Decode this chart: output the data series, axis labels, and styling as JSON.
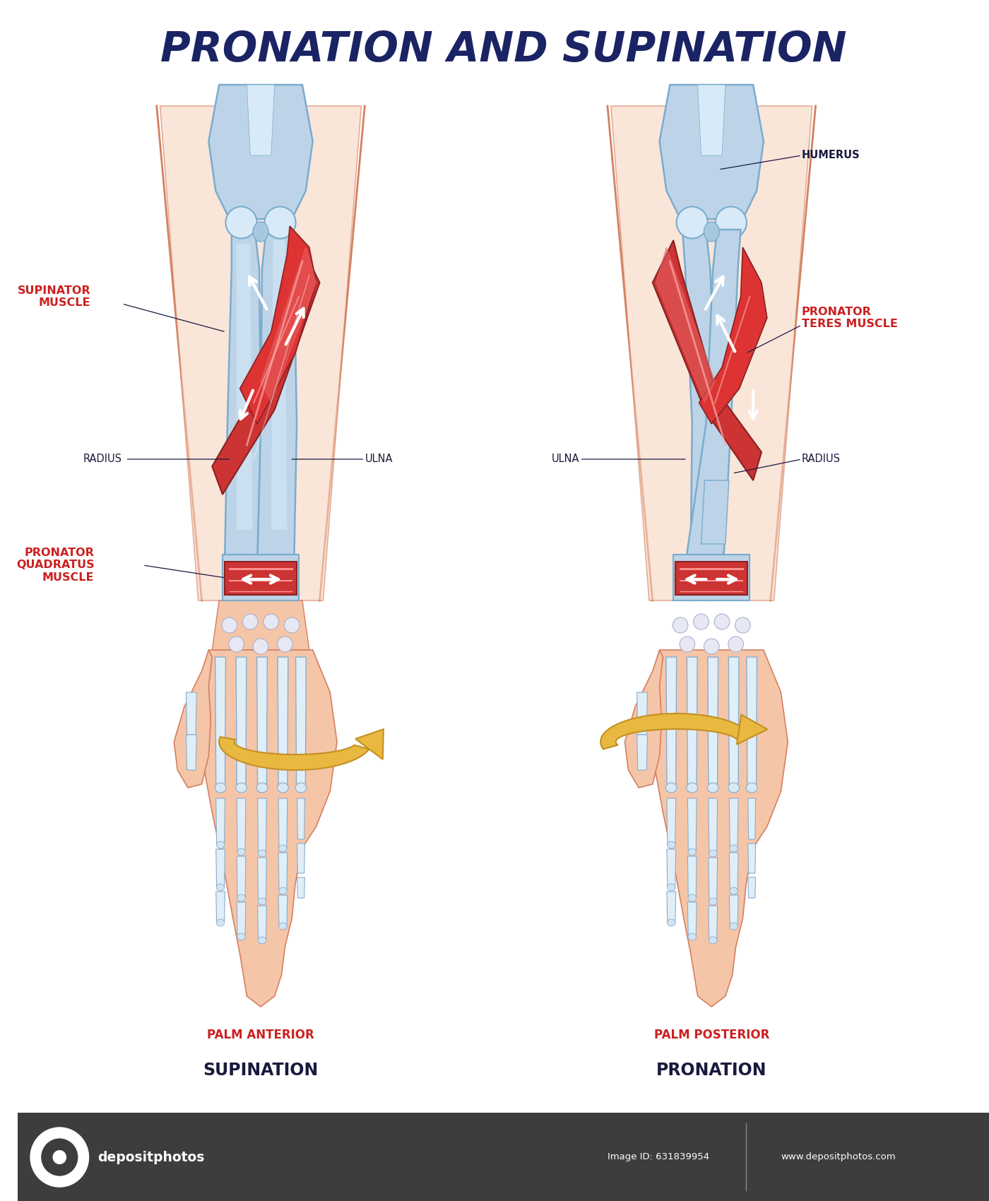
{
  "title": "PRONATION AND SUPINATION",
  "title_color": "#1a2464",
  "title_fontsize": 42,
  "background_color": "#ffffff",
  "left_labels": {
    "supinator_muscle": "SUPINATOR\nMUSCLE",
    "radius": "RADIUS",
    "ulna": "ULNA",
    "pronator_quadratus": "PRONATOR\nQUADRATUS\nMUSCLE",
    "palm_anterior": "PALM ANTERIOR",
    "supination": "SUPINATION"
  },
  "right_labels": {
    "humerus": "HUMERUS",
    "pronator_teres": "PRONATOR\nTERES MUSCLE",
    "ulna": "ULNA",
    "radius": "RADIUS",
    "palm_posterior": "PALM POSTERIOR",
    "pronation": "PRONATION"
  },
  "label_color_red": "#cc2020",
  "label_color_dark": "#1a1a3e",
  "bone_fill": "#bdd4e8",
  "bone_light": "#d8eaf8",
  "bone_outline": "#7aaccc",
  "skin_fill": "#f5c5a8",
  "skin_outline": "#d48060",
  "muscle_fill": "#cc3333",
  "muscle_light": "#e86666",
  "muscle_outline": "#882222",
  "rotation_arrow_color": "#e8b840",
  "rotation_arrow_outline": "#c49020",
  "footer_bg": "#3d3d3d",
  "footer_text": "#ffffff"
}
